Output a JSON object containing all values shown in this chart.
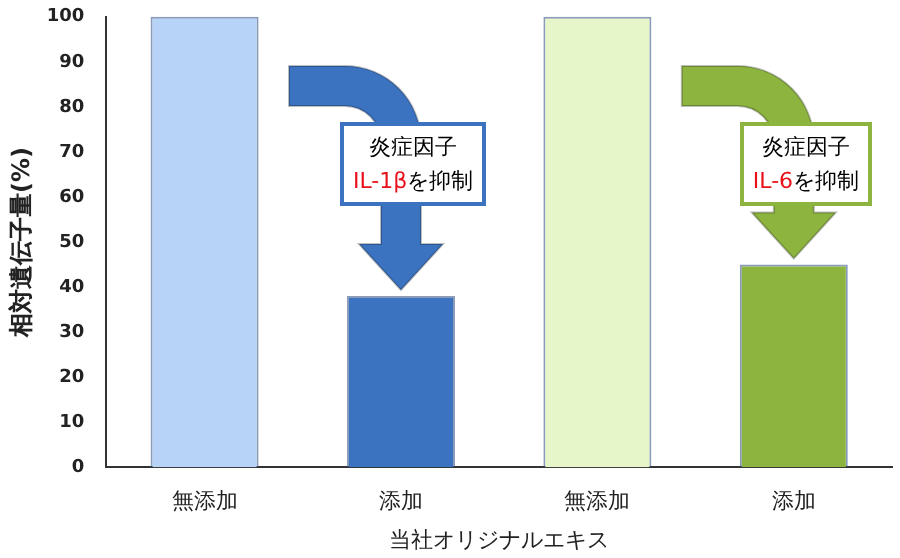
{
  "chart_data": {
    "type": "bar",
    "categories": [
      "無添加",
      "添加",
      "無添加",
      "添加"
    ],
    "values": [
      100,
      38,
      100,
      45
    ],
    "colors": [
      "#b7d3f7",
      "#3c73c0",
      "#e6f6c8",
      "#8cb43e"
    ],
    "ylabel": "相対遺伝子量(%)",
    "xlabel": "当社オリジナルエキス",
    "ylim": [
      0,
      100
    ],
    "yticks": [
      0,
      10,
      20,
      30,
      40,
      50,
      60,
      70,
      80,
      90,
      100
    ],
    "grid": false,
    "legend": false,
    "annotations": [
      "炎症因子\nIL-1βを抑制",
      "炎症因子\nIL-6を抑制"
    ]
  }
}
